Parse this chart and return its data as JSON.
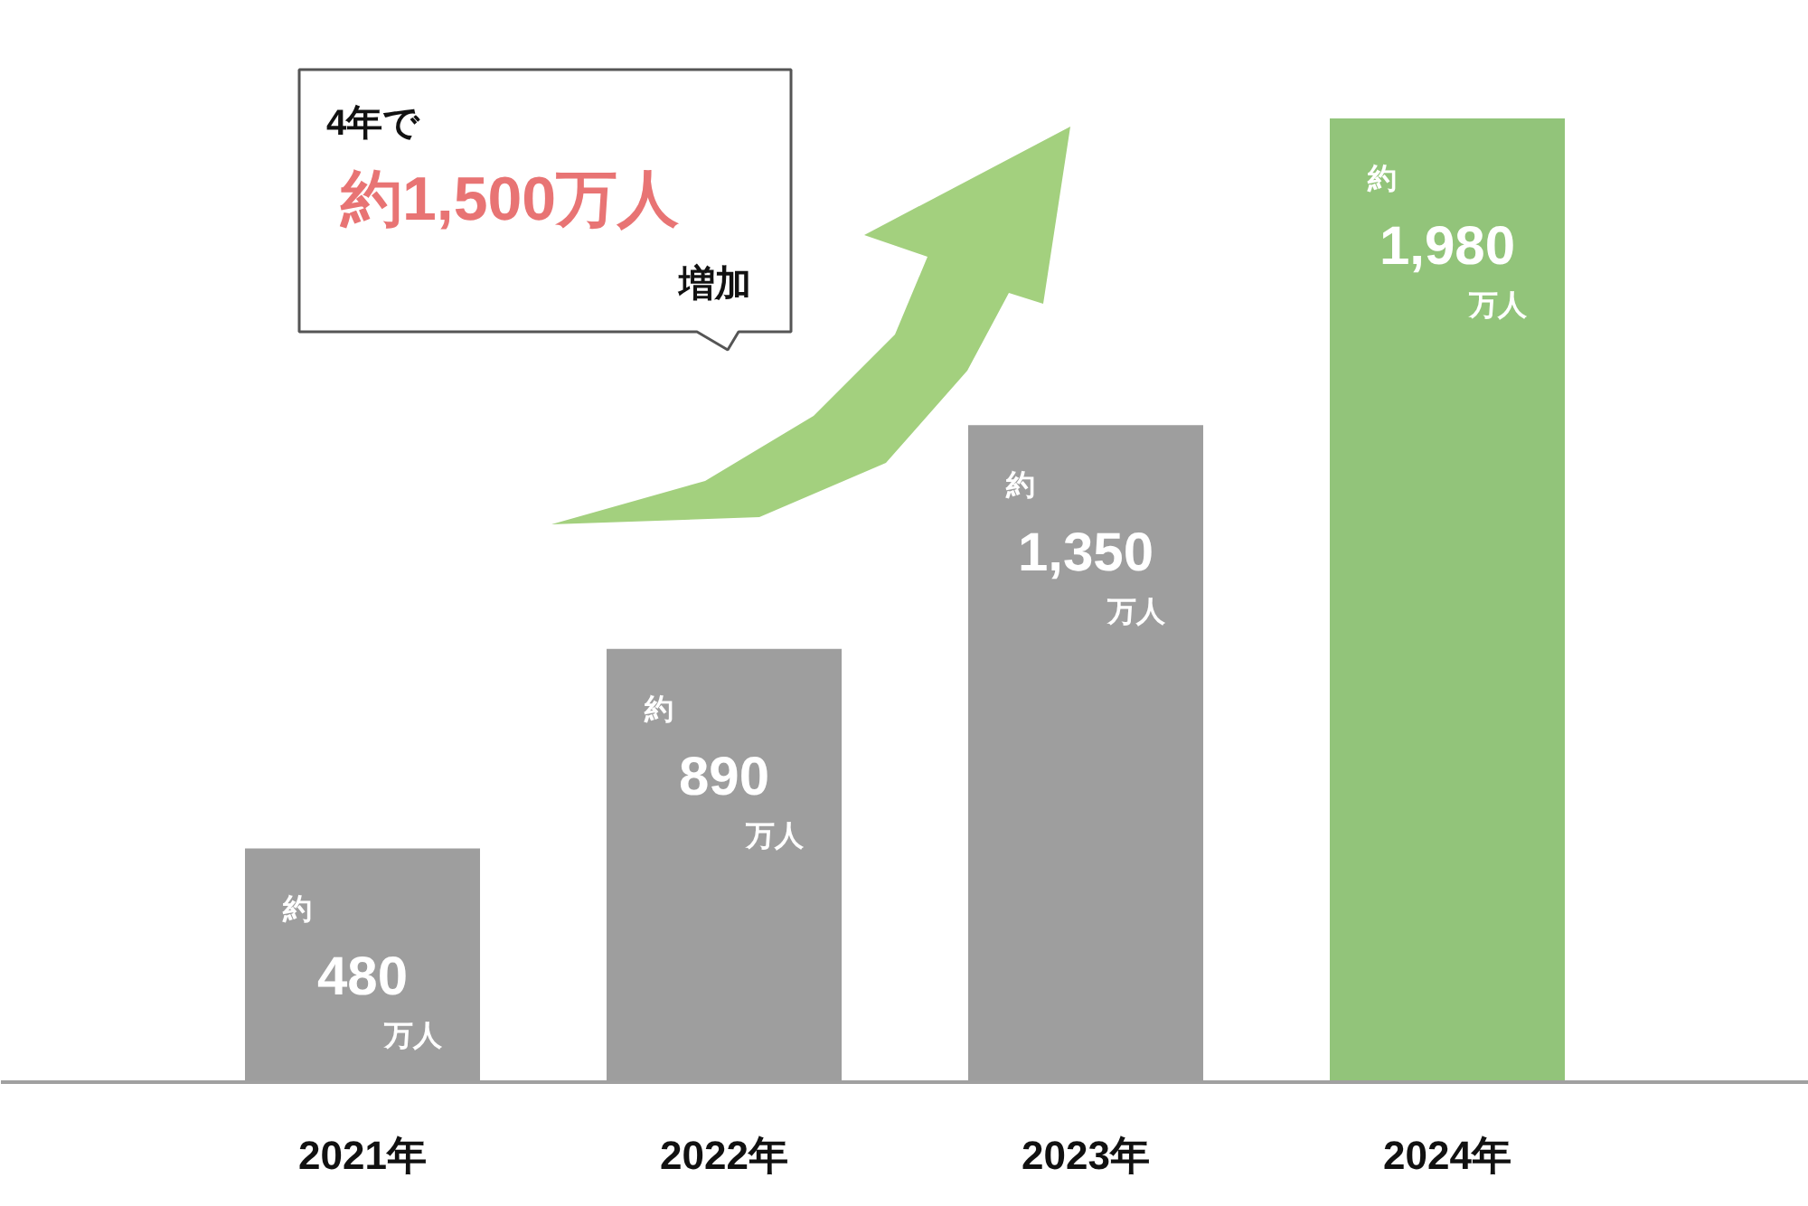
{
  "chart_data": {
    "type": "bar",
    "categories": [
      "2021年",
      "2022年",
      "2023年",
      "2024年"
    ],
    "values": [
      480,
      890,
      1350,
      1980
    ],
    "colors": [
      "#9e9e9e",
      "#9e9e9e",
      "#9e9e9e",
      "#92c47a"
    ],
    "value_labels": [
      "約\n480\n万人",
      "約\n890\n万人",
      "約\n1,350\n万人",
      "約\n1,980\n万人"
    ],
    "annotations": [
      "4年で",
      "約1,500万人",
      "増加"
    ],
    "grid": false
  }
}
